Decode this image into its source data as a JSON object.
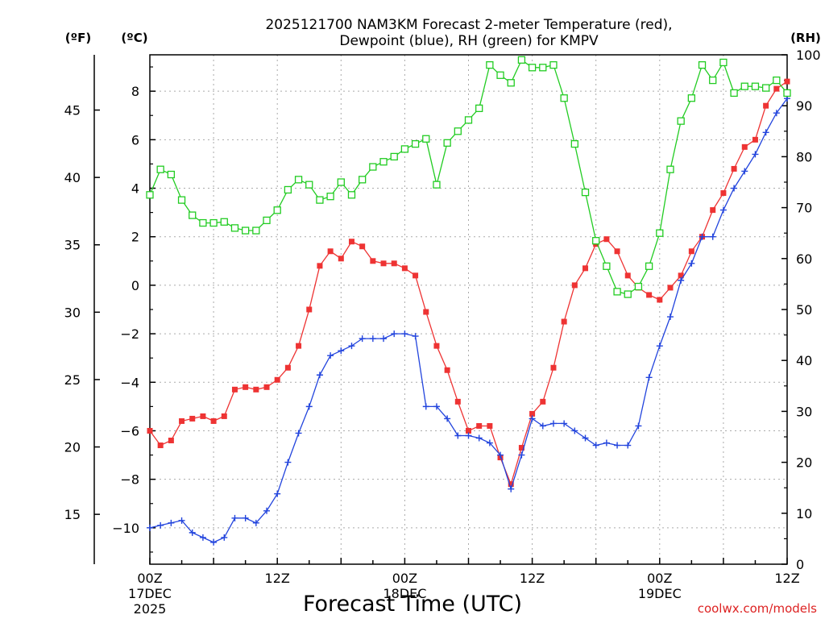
{
  "chart_data": {
    "type": "line",
    "title_line1": "2025121700 NAM3KM Forecast 2-meter Temperature (red),",
    "title_line2": "Dewpoint (blue), RH (green) for KMPV",
    "xlabel": "Forecast Time (UTC)",
    "credit": "coolwx.com/models",
    "unit_f": "(ºF)",
    "unit_c": "(ºC)",
    "unit_rh": "(RH)",
    "colors": {
      "temperature": "#ee3333",
      "dewpoint": "#2244dd",
      "rh": "#22cc22",
      "grid": "#aaaaaa",
      "axis": "#000000"
    },
    "x_hours": {
      "min": 0,
      "max": 60
    },
    "ylim_c": [
      -11.5,
      9.5
    ],
    "ylim_f": [
      11.3,
      49.1
    ],
    "ylim_rh": [
      0,
      100
    ],
    "x_ticks": [
      {
        "hour": 0,
        "label": "00Z",
        "sub1": "17DEC",
        "sub2": "2025"
      },
      {
        "hour": 12,
        "label": "12Z",
        "sub1": "",
        "sub2": ""
      },
      {
        "hour": 24,
        "label": "00Z",
        "sub1": "18DEC",
        "sub2": ""
      },
      {
        "hour": 36,
        "label": "12Z",
        "sub1": "",
        "sub2": ""
      },
      {
        "hour": 48,
        "label": "00Z",
        "sub1": "19DEC",
        "sub2": ""
      },
      {
        "hour": 60,
        "label": "12Z",
        "sub1": "",
        "sub2": ""
      }
    ],
    "y_ticks_c": [
      {
        "value": 8,
        "label": "8"
      },
      {
        "value": 6,
        "label": "6"
      },
      {
        "value": 4,
        "label": "4"
      },
      {
        "value": 2,
        "label": "2"
      },
      {
        "value": 0,
        "label": "0"
      },
      {
        "value": -2,
        "label": "−2"
      },
      {
        "value": -4,
        "label": "−4"
      },
      {
        "value": -6,
        "label": "−6"
      },
      {
        "value": -8,
        "label": "−8"
      },
      {
        "value": -10,
        "label": "−10"
      }
    ],
    "y_ticks_f": [
      {
        "value": 45,
        "label": "45"
      },
      {
        "value": 40,
        "label": "40"
      },
      {
        "value": 35,
        "label": "35"
      },
      {
        "value": 30,
        "label": "30"
      },
      {
        "value": 25,
        "label": "25"
      },
      {
        "value": 20,
        "label": "20"
      },
      {
        "value": 15,
        "label": "15"
      }
    ],
    "y_ticks_rh": [
      {
        "value": 100,
        "label": "100"
      },
      {
        "value": 90,
        "label": "90"
      },
      {
        "value": 80,
        "label": "80"
      },
      {
        "value": 70,
        "label": "70"
      },
      {
        "value": 60,
        "label": "60"
      },
      {
        "value": 50,
        "label": "50"
      },
      {
        "value": 40,
        "label": "40"
      },
      {
        "value": 30,
        "label": "30"
      },
      {
        "value": 20,
        "label": "20"
      },
      {
        "value": 10,
        "label": "10"
      },
      {
        "value": 0,
        "label": "0"
      }
    ],
    "series": [
      {
        "name": "2-meter Temperature (ºC)",
        "key": "temperature",
        "marker": "filled-square",
        "values": [
          -6.0,
          -6.6,
          -6.4,
          -5.6,
          -5.5,
          -5.4,
          -5.6,
          -5.4,
          -4.3,
          -4.2,
          -4.3,
          -4.2,
          -3.9,
          -3.4,
          -2.5,
          -1.0,
          0.8,
          1.4,
          1.1,
          1.8,
          1.6,
          1.0,
          0.9,
          0.9,
          0.7,
          0.4,
          -1.1,
          -2.5,
          -3.5,
          -4.8,
          -6.0,
          -5.8,
          -5.8,
          -7.1,
          -8.2,
          -6.7,
          -5.3,
          -4.8,
          -3.4,
          -1.5,
          0.0,
          0.7,
          1.7,
          1.9,
          1.4,
          0.4,
          -0.1,
          -0.4,
          -0.6,
          -0.1,
          0.4,
          1.4,
          2.0,
          3.1,
          3.8,
          4.8,
          5.7,
          6.0,
          7.4,
          8.1,
          8.4
        ]
      },
      {
        "name": "Dewpoint (ºC)",
        "key": "dewpoint",
        "marker": "plus",
        "values": [
          -10.0,
          -9.9,
          -9.8,
          -9.7,
          -10.2,
          -10.4,
          -10.6,
          -10.4,
          -9.6,
          -9.6,
          -9.8,
          -9.3,
          -8.6,
          -7.3,
          -6.1,
          -5.0,
          -3.7,
          -2.9,
          -2.7,
          -2.5,
          -2.2,
          -2.2,
          -2.2,
          -2.0,
          -2.0,
          -2.1,
          -5.0,
          -5.0,
          -5.5,
          -6.2,
          -6.2,
          -6.3,
          -6.5,
          -7.0,
          -8.4,
          -7.0,
          -5.5,
          -5.8,
          -5.7,
          -5.7,
          -6.0,
          -6.3,
          -6.6,
          -6.5,
          -6.6,
          -6.6,
          -5.8,
          -3.8,
          -2.5,
          -1.3,
          0.2,
          0.9,
          2.0,
          2.0,
          3.1,
          4.0,
          4.7,
          5.4,
          6.3,
          7.1,
          7.7
        ]
      },
      {
        "name": "RH (%)",
        "key": "rh",
        "axis": "rh",
        "marker": "open-square",
        "values": [
          72.5,
          77.5,
          76.5,
          71.5,
          68.5,
          67.0,
          67.0,
          67.2,
          66.0,
          65.5,
          65.5,
          67.5,
          69.5,
          73.5,
          75.5,
          74.5,
          71.5,
          72.2,
          75.0,
          72.5,
          75.5,
          78.0,
          79.0,
          80.0,
          81.5,
          82.5,
          83.5,
          74.5,
          82.7,
          85.0,
          87.2,
          89.5,
          98.0,
          96.0,
          94.5,
          99.0,
          97.5,
          97.5,
          98.0,
          91.5,
          82.5,
          73.0,
          63.5,
          58.5,
          53.5,
          53.0,
          54.5,
          58.5,
          65.0,
          77.5,
          87.0,
          91.5,
          98.0,
          95.0,
          98.5,
          92.5,
          93.8,
          93.8,
          93.5,
          95.0,
          92.5
        ]
      }
    ]
  }
}
